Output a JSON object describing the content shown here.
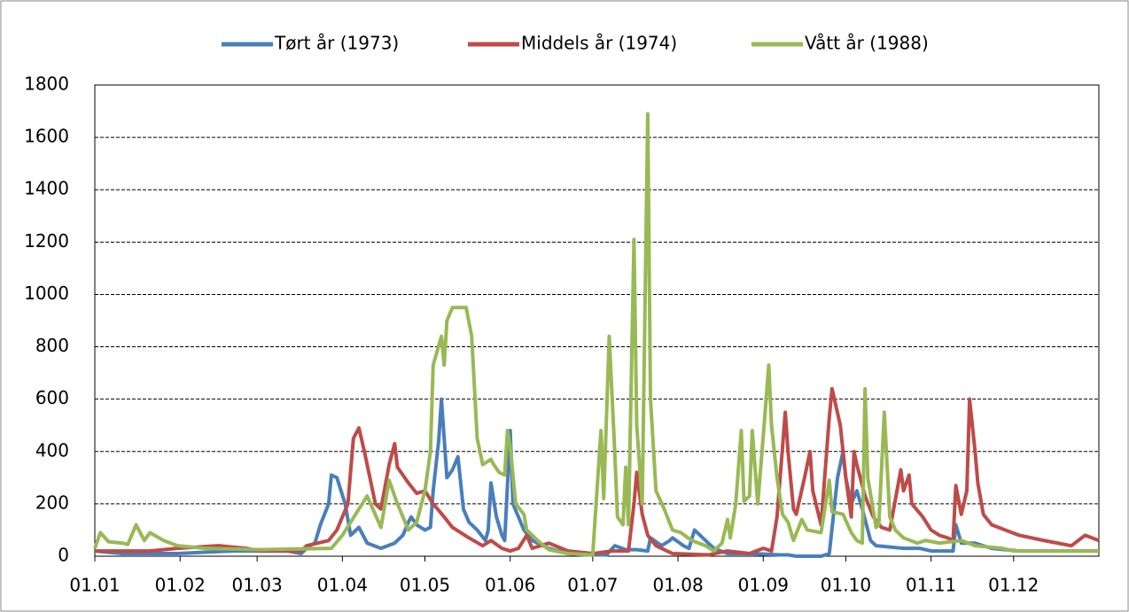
{
  "chart_data": {
    "type": "line",
    "xlim": [
      0,
      365
    ],
    "xticks": [
      {
        "value": 0,
        "label": "01.01"
      },
      {
        "value": 31,
        "label": "01.02"
      },
      {
        "value": 59,
        "label": "01.03"
      },
      {
        "value": 90,
        "label": "01.04"
      },
      {
        "value": 120,
        "label": "01.05"
      },
      {
        "value": 151,
        "label": "01.06"
      },
      {
        "value": 181,
        "label": "01.07"
      },
      {
        "value": 212,
        "label": "01.08"
      },
      {
        "value": 243,
        "label": "01.09"
      },
      {
        "value": 273,
        "label": "01.10"
      },
      {
        "value": 304,
        "label": "01.11"
      },
      {
        "value": 334,
        "label": "01.12"
      }
    ],
    "ylim": [
      0,
      1800
    ],
    "yticks": [
      0,
      200,
      400,
      600,
      800,
      1000,
      1200,
      1400,
      1600,
      1800
    ],
    "grid": true,
    "legend": "top",
    "series": [
      {
        "name": "Tørt år (1973)",
        "color": "#4a7ebb",
        "x": [
          0,
          10,
          30,
          50,
          70,
          75,
          78,
          80,
          82,
          85,
          86,
          88,
          91,
          93,
          96,
          99,
          104,
          109,
          112,
          114,
          115,
          117,
          120,
          122,
          123,
          125,
          126,
          128,
          130,
          132,
          134,
          136,
          139,
          142,
          143,
          144,
          146,
          148,
          149,
          151,
          152,
          156,
          159,
          165,
          172,
          178,
          186,
          189,
          193,
          197,
          201,
          202,
          206,
          209,
          210,
          214,
          216,
          218,
          220,
          223,
          225,
          230,
          239,
          249,
          252,
          255,
          264,
          267,
          270,
          272,
          273,
          275,
          277,
          279,
          282,
          284,
          294,
          300,
          304,
          312,
          313,
          315,
          320,
          326,
          336,
          365
        ],
        "values": [
          20,
          10,
          10,
          20,
          20,
          10,
          40,
          50,
          120,
          200,
          310,
          300,
          200,
          80,
          110,
          50,
          30,
          50,
          80,
          130,
          150,
          120,
          100,
          110,
          250,
          440,
          600,
          300,
          330,
          380,
          180,
          130,
          100,
          60,
          100,
          280,
          150,
          80,
          60,
          480,
          200,
          100,
          60,
          30,
          10,
          5,
          5,
          40,
          25,
          25,
          20,
          70,
          40,
          60,
          70,
          40,
          30,
          100,
          80,
          50,
          30,
          10,
          10,
          5,
          5,
          0,
          0,
          10,
          300,
          400,
          300,
          200,
          250,
          180,
          60,
          40,
          30,
          30,
          20,
          20,
          120,
          50,
          50,
          30,
          20,
          20
        ]
      },
      {
        "name": "Middels år (1974)",
        "color": "#be4b48",
        "x": [
          0,
          20,
          30,
          45,
          55,
          60,
          75,
          77,
          85,
          88,
          92,
          94,
          96,
          98,
          100,
          102,
          104,
          107,
          109,
          110,
          114,
          117,
          120,
          123,
          127,
          130,
          136,
          141,
          144,
          148,
          151,
          154,
          157,
          159,
          165,
          172,
          181,
          188,
          194,
          196,
          197,
          199,
          201,
          204,
          210,
          223,
          230,
          238,
          243,
          246,
          248,
          251,
          252,
          254,
          255,
          258,
          260,
          261,
          264,
          267,
          268,
          271,
          273,
          275,
          276,
          277,
          280,
          283,
          286,
          289,
          293,
          294,
          296,
          297,
          301,
          304,
          307,
          310,
          312,
          313,
          315,
          317,
          318,
          320,
          321,
          323,
          326,
          336,
          345,
          355,
          360,
          365
        ],
        "values": [
          20,
          20,
          30,
          40,
          30,
          20,
          20,
          40,
          60,
          100,
          200,
          450,
          490,
          400,
          300,
          200,
          180,
          350,
          430,
          340,
          280,
          240,
          250,
          200,
          150,
          110,
          70,
          40,
          60,
          30,
          20,
          30,
          80,
          30,
          50,
          20,
          10,
          20,
          20,
          200,
          320,
          160,
          80,
          40,
          10,
          5,
          20,
          10,
          30,
          20,
          150,
          550,
          400,
          180,
          160,
          300,
          400,
          250,
          120,
          530,
          640,
          500,
          300,
          150,
          400,
          350,
          230,
          150,
          110,
          100,
          330,
          250,
          310,
          200,
          150,
          100,
          80,
          70,
          60,
          270,
          160,
          250,
          600,
          400,
          280,
          160,
          120,
          80,
          60,
          40,
          80,
          60
        ]
      },
      {
        "name": "Vått år (1988)",
        "color": "#98b954",
        "x": [
          0,
          2,
          5,
          10,
          12,
          15,
          18,
          20,
          25,
          30,
          40,
          60,
          86,
          90,
          99,
          104,
          107,
          110,
          114,
          117,
          120,
          122,
          123,
          126,
          127,
          128,
          130,
          135,
          137,
          139,
          141,
          144,
          145,
          147,
          149,
          150,
          151,
          153,
          156,
          157,
          162,
          165,
          172,
          181,
          184,
          185,
          187,
          189,
          190,
          192,
          193,
          194,
          196,
          197,
          199,
          201,
          202,
          204,
          207,
          210,
          213,
          217,
          222,
          225,
          228,
          230,
          231,
          233,
          235,
          236,
          238,
          239,
          241,
          243,
          245,
          246,
          248,
          250,
          252,
          254,
          257,
          259,
          264,
          267,
          268,
          272,
          275,
          277,
          279,
          280,
          281,
          284,
          285,
          287,
          289,
          291,
          294,
          299,
          302,
          307,
          315,
          320,
          330,
          334,
          365
        ],
        "values": [
          30,
          90,
          55,
          50,
          45,
          120,
          60,
          90,
          60,
          40,
          30,
          25,
          30,
          80,
          230,
          110,
          290,
          200,
          100,
          130,
          250,
          400,
          730,
          840,
          730,
          900,
          950,
          950,
          840,
          450,
          350,
          370,
          350,
          320,
          310,
          480,
          420,
          200,
          160,
          100,
          50,
          25,
          10,
          5,
          480,
          220,
          840,
          400,
          150,
          120,
          340,
          120,
          1210,
          500,
          200,
          1690,
          600,
          250,
          180,
          100,
          90,
          60,
          40,
          20,
          50,
          140,
          70,
          200,
          480,
          210,
          230,
          480,
          200,
          460,
          730,
          500,
          300,
          160,
          130,
          60,
          140,
          100,
          90,
          290,
          170,
          160,
          90,
          60,
          50,
          640,
          300,
          110,
          120,
          550,
          150,
          100,
          70,
          50,
          60,
          50,
          60,
          40,
          30,
          20,
          20
        ]
      }
    ]
  }
}
